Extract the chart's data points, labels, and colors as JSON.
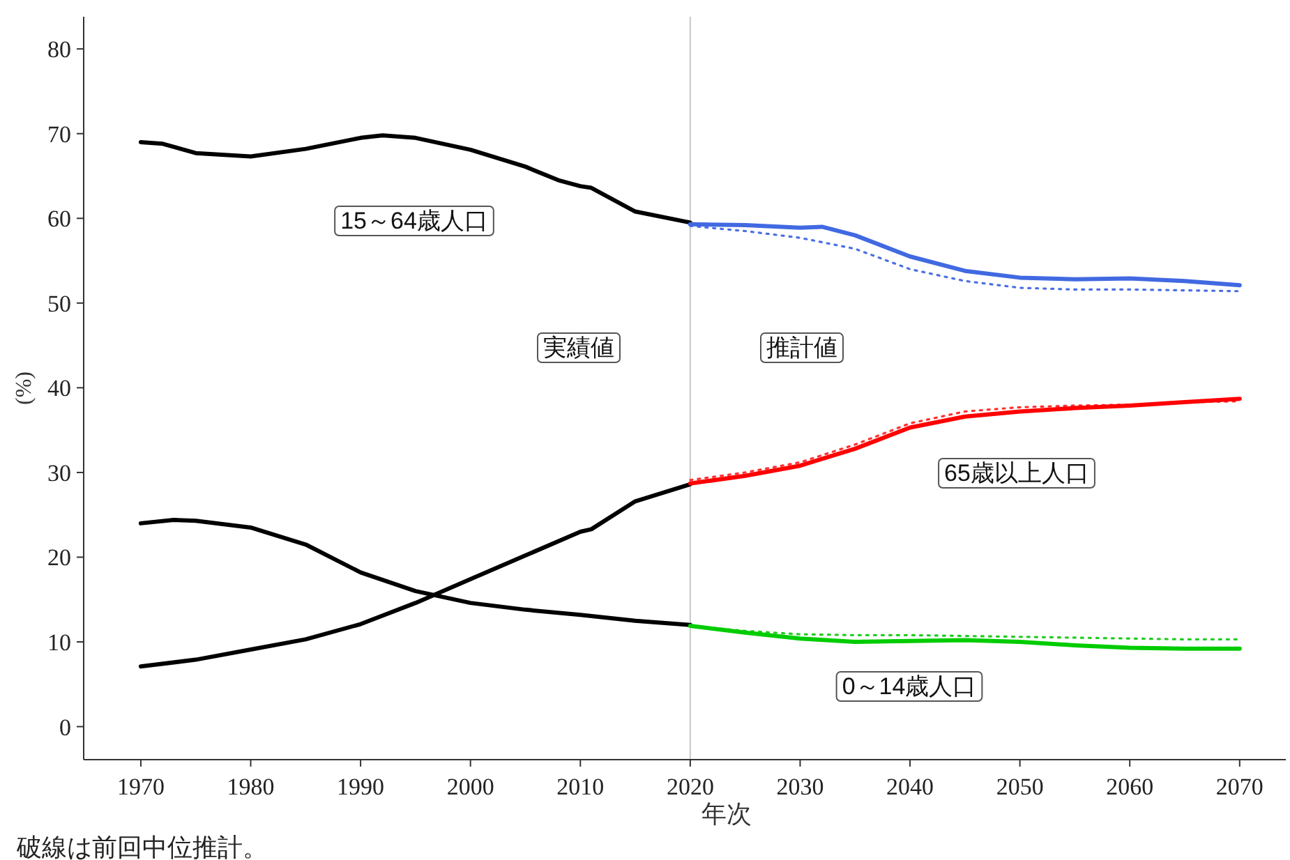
{
  "chart_data": {
    "type": "line",
    "xlabel": "年次",
    "ylabel": "(%)",
    "xlim": [
      1964.8,
      2074.2
    ],
    "ylim": [
      -3.9,
      83.8
    ],
    "xticks": [
      1970,
      1980,
      1990,
      2000,
      2010,
      2020,
      2030,
      2040,
      2050,
      2060,
      2070
    ],
    "yticks": [
      0,
      10,
      20,
      30,
      40,
      50,
      60,
      70,
      80
    ],
    "ref_lines": [
      {
        "axis": "x",
        "value": 2020,
        "color": "#c8c8c8"
      }
    ],
    "series": [
      {
        "color": "#4a6fe3",
        "line_style": "dotted",
        "x": [
          2020,
          2025,
          2030,
          2035,
          2040,
          2045,
          2050,
          2055,
          2060,
          2065,
          2070
        ],
        "values": [
          59.1,
          58.5,
          57.7,
          56.4,
          54.0,
          52.6,
          51.8,
          51.6,
          51.6,
          51.5,
          51.4
        ]
      },
      {
        "color": "#ff3030",
        "line_style": "dotted",
        "x": [
          2020,
          2025,
          2030,
          2035,
          2040,
          2045,
          2050,
          2055,
          2060,
          2065,
          2070
        ],
        "values": [
          29.1,
          30.0,
          31.2,
          33.3,
          35.8,
          37.2,
          37.7,
          37.9,
          38.0,
          38.3,
          38.4
        ]
      },
      {
        "color": "#22cc22",
        "line_style": "dotted",
        "x": [
          2020,
          2025,
          2030,
          2035,
          2040,
          2045,
          2050,
          2055,
          2060,
          2065,
          2070
        ],
        "values": [
          11.9,
          11.3,
          10.9,
          10.8,
          10.8,
          10.7,
          10.6,
          10.5,
          10.4,
          10.3,
          10.3
        ]
      },
      {
        "color": "#000000",
        "line_style": "solid",
        "x": [
          1970,
          1972,
          1975,
          1980,
          1985,
          1990,
          1992,
          1995,
          2000,
          2005,
          2008,
          2010,
          2011,
          2015,
          2020
        ],
        "values": [
          69.0,
          68.8,
          67.7,
          67.3,
          68.2,
          69.5,
          69.8,
          69.5,
          68.1,
          66.1,
          64.5,
          63.8,
          63.6,
          60.8,
          59.5
        ]
      },
      {
        "color": "#000000",
        "line_style": "solid",
        "x": [
          1970,
          1975,
          1980,
          1985,
          1990,
          1995,
          2000,
          2005,
          2010,
          2011,
          2015,
          2020
        ],
        "values": [
          7.1,
          7.9,
          9.1,
          10.3,
          12.1,
          14.6,
          17.4,
          20.2,
          23.0,
          23.3,
          26.6,
          28.6
        ]
      },
      {
        "color": "#000000",
        "line_style": "solid",
        "x": [
          1970,
          1973,
          1975,
          1980,
          1985,
          1990,
          1995,
          2000,
          2005,
          2010,
          2015,
          2020
        ],
        "values": [
          24.0,
          24.4,
          24.3,
          23.5,
          21.5,
          18.2,
          16.0,
          14.6,
          13.8,
          13.2,
          12.5,
          12.0
        ]
      },
      {
        "color": "#4169e1",
        "line_style": "solid",
        "x": [
          2020,
          2025,
          2030,
          2032,
          2035,
          2040,
          2045,
          2050,
          2055,
          2060,
          2065,
          2070
        ],
        "values": [
          59.3,
          59.2,
          58.9,
          59.0,
          58.0,
          55.5,
          53.8,
          53.0,
          52.8,
          52.9,
          52.6,
          52.1
        ]
      },
      {
        "color": "#ff0000",
        "line_style": "solid",
        "x": [
          2020,
          2025,
          2030,
          2035,
          2040,
          2045,
          2050,
          2055,
          2060,
          2065,
          2070
        ],
        "values": [
          28.7,
          29.6,
          30.8,
          32.8,
          35.3,
          36.6,
          37.2,
          37.6,
          37.9,
          38.3,
          38.7
        ]
      },
      {
        "color": "#00cc00",
        "line_style": "solid",
        "x": [
          2020,
          2025,
          2030,
          2035,
          2040,
          2045,
          2050,
          2055,
          2060,
          2065,
          2070
        ],
        "values": [
          11.9,
          11.1,
          10.4,
          10.0,
          10.1,
          10.2,
          10.0,
          9.6,
          9.3,
          9.2,
          9.2
        ]
      }
    ],
    "annotations": [
      "15～64歳人口",
      "実績値",
      "推計値",
      "65歳以上人口",
      "0～14歳人口",
      "破線は前回中位推計。"
    ]
  }
}
